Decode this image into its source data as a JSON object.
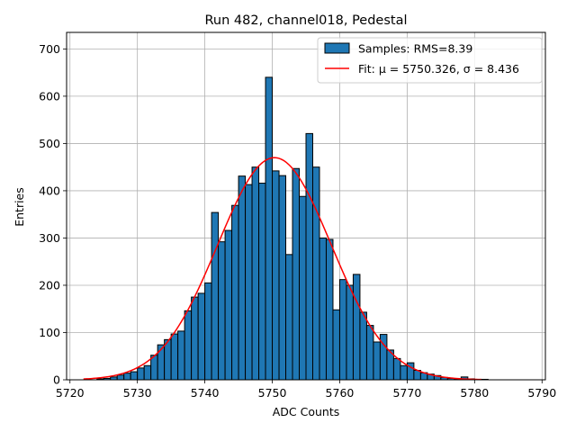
{
  "chart_data": {
    "type": "bar",
    "title": "Run 482, channel018, Pedestal",
    "xlabel": "ADC Counts",
    "ylabel": "Entries",
    "xlim": [
      5719.5,
      5790.5
    ],
    "ylim": [
      0,
      735
    ],
    "xticks": [
      5720,
      5730,
      5740,
      5750,
      5760,
      5770,
      5780,
      5790
    ],
    "yticks": [
      0,
      100,
      200,
      300,
      400,
      500,
      600,
      700
    ],
    "grid": true,
    "legend_position": "top-right",
    "bin_width": 1,
    "bin_edges_start": 5722,
    "bin_counts": [
      0,
      0,
      2,
      3,
      6,
      10,
      14,
      17,
      25,
      30,
      52,
      74,
      85,
      97,
      103,
      146,
      175,
      183,
      205,
      354,
      292,
      316,
      369,
      431,
      413,
      450,
      416,
      640,
      442,
      432,
      265,
      447,
      388,
      521,
      450,
      300,
      297,
      148,
      212,
      200,
      223,
      143,
      115,
      80,
      96,
      63,
      45,
      30,
      36,
      20,
      15,
      12,
      9,
      5,
      3,
      2,
      6,
      2,
      1,
      1,
      0,
      0,
      0,
      0,
      0
    ],
    "series": [
      {
        "name": "Samples: RMS=8.39",
        "kind": "histogram",
        "color": "#1f77b4",
        "edgecolor": "#000000"
      },
      {
        "name": "Fit: μ = 5750.326, σ = 8.436",
        "kind": "line",
        "color": "#ff0000",
        "mu": 5750.326,
        "sigma": 8.436,
        "amplitude": 470,
        "x_range": [
          5722,
          5781
        ]
      }
    ]
  }
}
